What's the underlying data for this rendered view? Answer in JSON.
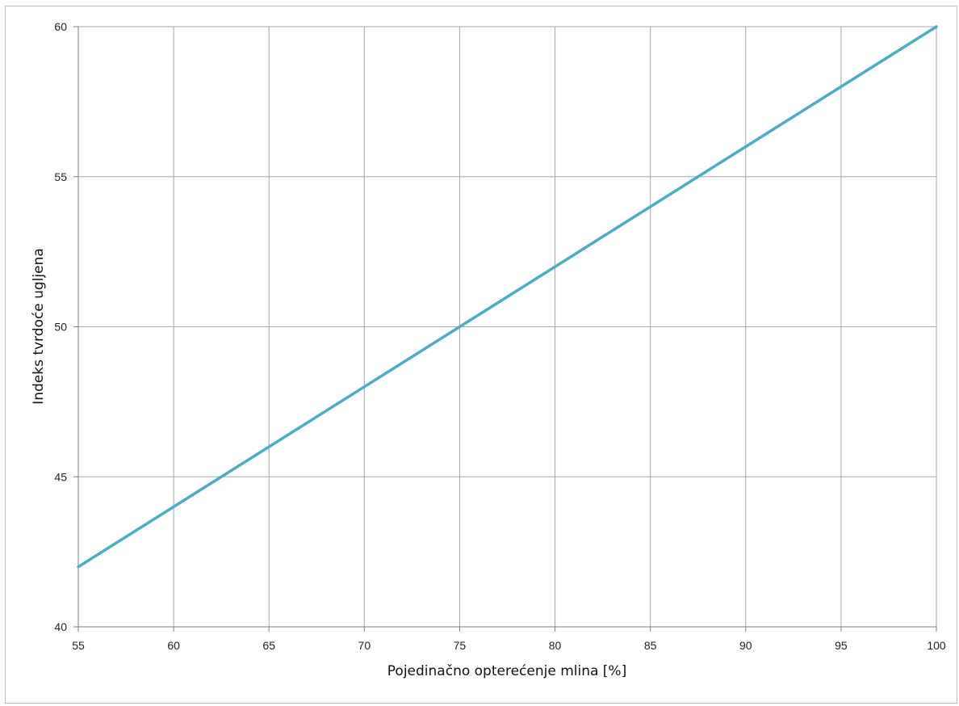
{
  "chart_data": {
    "type": "line",
    "title": "",
    "xlabel": "Pojedinačno opterećenje mlina [%]",
    "ylabel": "Indeks tvrdoće ugljena",
    "xlim": [
      55,
      100
    ],
    "ylim": [
      40,
      60
    ],
    "x_ticks": [
      55,
      60,
      65,
      70,
      75,
      80,
      85,
      90,
      95,
      100
    ],
    "y_ticks": [
      40,
      45,
      50,
      55,
      60
    ],
    "grid": true,
    "series": [
      {
        "color": "#4bacc6",
        "x": [
          55,
          100
        ],
        "y": [
          42,
          60
        ]
      }
    ]
  }
}
